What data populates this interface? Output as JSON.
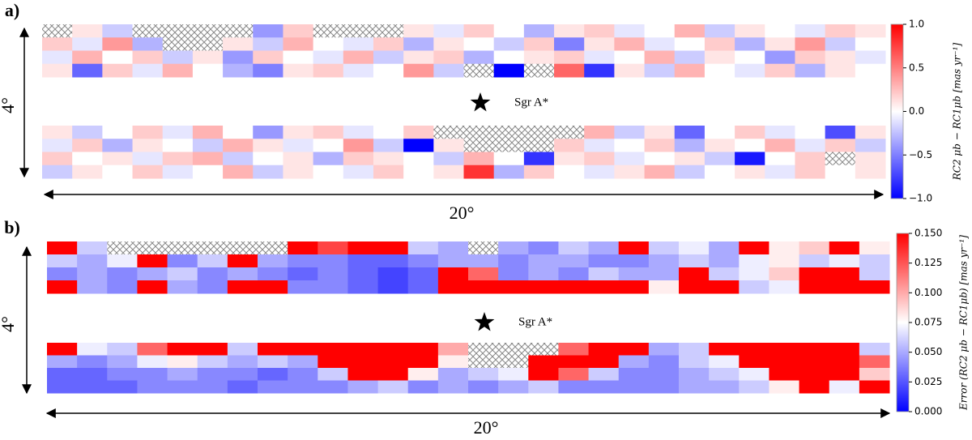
{
  "chart_data": [
    {
      "type": "heatmap",
      "panel_label": "a)",
      "height_label": "4°",
      "width_label": "20°",
      "marker_label": "Sgr A*",
      "colorbar_label": "RC2 μb − RC1μb [mas yr⁻¹]",
      "colors": [
        "#0000ff",
        "#ffffff",
        "#ff0000"
      ],
      "zlim": [
        -1,
        1
      ],
      "zticks": [
        {
          "value": -1,
          "label": "−1.0"
        },
        {
          "value": -0.5,
          "label": "−0.5"
        },
        {
          "value": 0,
          "label": "0.0"
        },
        {
          "value": 0.5,
          "label": "0.5"
        },
        {
          "value": 1,
          "label": "1.0"
        }
      ],
      "upper": [
        [
          null,
          0.1,
          -0.2,
          null,
          null,
          null,
          null,
          -0.4,
          0.2,
          null,
          null,
          null,
          0.1,
          -0.1,
          0.2,
          0.0,
          -0.3,
          0.1,
          0.2,
          -0.1,
          0.0,
          0.3,
          -0.2,
          0.1,
          0.0,
          -0.1,
          0.2,
          0.1
        ],
        [
          0.2,
          -0.1,
          0.4,
          -0.3,
          null,
          null,
          0.1,
          -0.2,
          0.3,
          0.0,
          -0.1,
          0.2,
          -0.3,
          0.1,
          0.0,
          -0.2,
          0.2,
          -0.5,
          0.1,
          0.3,
          -0.1,
          0.0,
          0.2,
          -0.3,
          0.1,
          0.4,
          -0.2,
          0.0
        ],
        [
          -0.1,
          0.3,
          0.0,
          0.2,
          -0.2,
          0.1,
          -0.4,
          0.2,
          0.0,
          -0.1,
          0.3,
          -0.2,
          0.1,
          0.2,
          -0.3,
          0.0,
          0.1,
          0.2,
          -0.1,
          0.0,
          0.3,
          -0.2,
          0.1,
          0.0,
          -0.4,
          0.2,
          0.1,
          -0.1
        ],
        [
          0.1,
          -0.6,
          0.2,
          -0.1,
          0.3,
          0.0,
          -0.3,
          -0.5,
          0.1,
          0.2,
          -0.1,
          0.0,
          0.4,
          -0.2,
          null,
          -1.0,
          null,
          0.6,
          -0.8,
          0.1,
          -0.2,
          0.3,
          0.0,
          -0.1,
          0.2,
          -0.3,
          0.1,
          0.0
        ]
      ],
      "lower": [
        [
          0.1,
          -0.2,
          0.0,
          0.2,
          -0.1,
          0.3,
          0.0,
          -0.4,
          0.1,
          0.2,
          -0.1,
          0.0,
          0.2,
          null,
          null,
          null,
          null,
          null,
          0.3,
          -0.2,
          0.1,
          -0.6,
          0.0,
          0.2,
          -0.1,
          0.0,
          -0.7,
          0.1
        ],
        [
          -0.1,
          0.2,
          -0.3,
          0.1,
          0.0,
          -0.2,
          0.3,
          0.1,
          -0.1,
          0.0,
          0.4,
          -0.2,
          -1.0,
          0.1,
          null,
          null,
          null,
          0.2,
          -0.1,
          0.0,
          0.2,
          -0.3,
          0.1,
          0.0,
          0.3,
          -0.1,
          0.2,
          -0.2
        ],
        [
          0.2,
          0.0,
          0.1,
          -0.1,
          0.2,
          0.3,
          -0.2,
          0.0,
          0.1,
          -0.3,
          0.2,
          0.1,
          0.0,
          -0.2,
          0.3,
          0.0,
          -0.8,
          0.1,
          0.2,
          -0.1,
          0.0,
          0.1,
          -0.2,
          -0.9,
          0.0,
          0.2,
          null,
          0.1
        ],
        [
          -0.2,
          0.1,
          0.0,
          0.2,
          -0.1,
          0.0,
          0.3,
          -0.2,
          0.1,
          0.0,
          -0.1,
          0.2,
          0.0,
          0.1,
          0.8,
          -0.3,
          0.2,
          0.0,
          -0.1,
          0.1,
          0.3,
          -0.2,
          0.0,
          0.1,
          -0.1,
          0.2,
          0.0,
          0.1
        ]
      ]
    },
    {
      "type": "heatmap",
      "panel_label": "b)",
      "height_label": "4°",
      "width_label": "20°",
      "marker_label": "Sgr A*",
      "colorbar_label": "Error (RC2 μb − RC1μb) [mas yr⁻¹]",
      "colors": [
        "#0000ff",
        "#ffffff",
        "#ff0000"
      ],
      "zlim": [
        0,
        0.15
      ],
      "zticks": [
        {
          "value": 0,
          "label": "0.000"
        },
        {
          "value": 0.025,
          "label": "0.025"
        },
        {
          "value": 0.05,
          "label": "0.050"
        },
        {
          "value": 0.075,
          "label": "0.075"
        },
        {
          "value": 0.1,
          "label": "0.100"
        },
        {
          "value": 0.125,
          "label": "0.125"
        },
        {
          "value": 0.15,
          "label": "0.150"
        }
      ],
      "upper": [
        [
          0.15,
          0.06,
          null,
          null,
          null,
          null,
          null,
          null,
          0.15,
          0.13,
          0.15,
          0.15,
          0.06,
          0.05,
          null,
          0.05,
          0.04,
          0.06,
          0.05,
          0.15,
          0.06,
          0.07,
          0.05,
          0.15,
          0.08,
          0.09,
          0.15,
          0.08
        ],
        [
          0.06,
          0.05,
          0.07,
          0.15,
          0.04,
          0.06,
          0.15,
          0.05,
          0.04,
          0.04,
          0.03,
          0.03,
          0.04,
          0.05,
          0.05,
          0.04,
          0.05,
          0.05,
          0.04,
          0.04,
          0.05,
          0.06,
          0.05,
          0.07,
          0.08,
          0.06,
          0.07,
          0.06
        ],
        [
          0.04,
          0.05,
          0.04,
          0.05,
          0.06,
          0.04,
          0.05,
          0.04,
          0.03,
          0.04,
          0.03,
          0.02,
          0.03,
          0.15,
          0.12,
          0.04,
          0.05,
          0.04,
          0.06,
          0.05,
          0.05,
          0.15,
          0.06,
          0.07,
          0.09,
          0.15,
          0.15,
          0.06
        ],
        [
          0.15,
          0.05,
          0.04,
          0.15,
          0.05,
          0.04,
          0.15,
          0.15,
          0.04,
          0.04,
          0.03,
          0.02,
          0.03,
          0.15,
          0.15,
          0.15,
          0.15,
          0.15,
          0.15,
          0.15,
          0.08,
          0.15,
          0.15,
          0.06,
          0.07,
          0.15,
          0.15,
          0.15
        ]
      ],
      "lower": [
        [
          0.15,
          0.07,
          0.06,
          0.12,
          0.15,
          0.15,
          0.06,
          0.15,
          0.15,
          0.15,
          0.15,
          0.15,
          0.15,
          0.1,
          null,
          null,
          null,
          0.12,
          0.15,
          0.15,
          0.05,
          0.06,
          0.15,
          0.15,
          0.15,
          0.15,
          0.15,
          0.06
        ],
        [
          0.05,
          0.04,
          0.05,
          0.07,
          0.08,
          0.06,
          0.05,
          0.06,
          0.05,
          0.15,
          0.15,
          0.15,
          0.15,
          0.08,
          null,
          null,
          0.15,
          0.15,
          0.15,
          0.05,
          0.04,
          0.06,
          0.07,
          0.15,
          0.15,
          0.15,
          0.15,
          0.12
        ],
        [
          0.03,
          0.03,
          0.04,
          0.04,
          0.05,
          0.04,
          0.04,
          0.03,
          0.04,
          0.06,
          0.15,
          0.15,
          0.08,
          0.05,
          0.06,
          0.07,
          0.15,
          0.12,
          0.06,
          0.04,
          0.04,
          0.05,
          0.06,
          0.07,
          0.15,
          0.15,
          0.15,
          0.09
        ],
        [
          0.03,
          0.03,
          0.03,
          0.04,
          0.04,
          0.04,
          0.03,
          0.04,
          0.04,
          0.04,
          0.05,
          0.06,
          0.04,
          0.05,
          0.04,
          0.05,
          0.06,
          0.04,
          0.04,
          0.04,
          0.04,
          0.05,
          0.05,
          0.06,
          0.08,
          0.15,
          0.07,
          0.15
        ]
      ]
    }
  ]
}
